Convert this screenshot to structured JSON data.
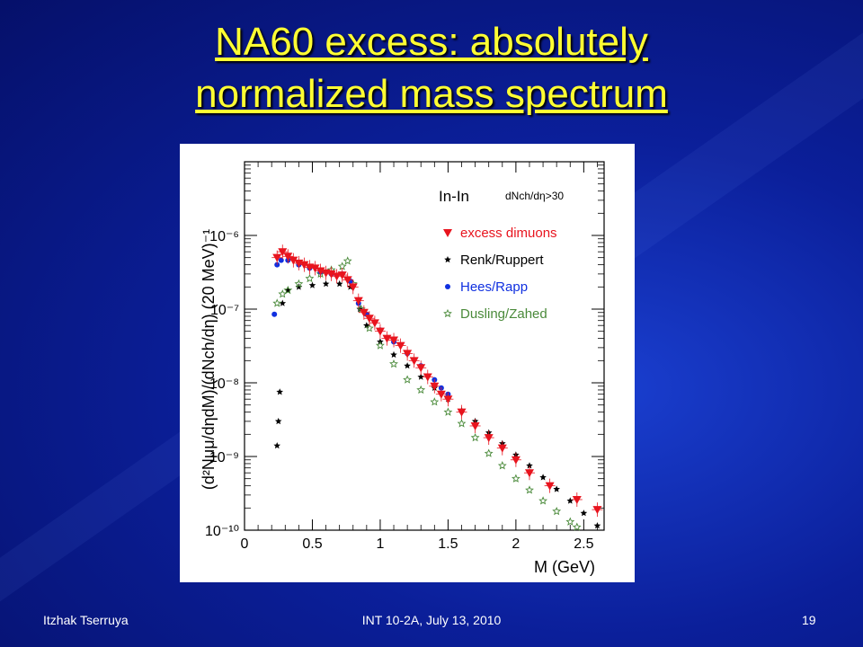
{
  "slide": {
    "title_line1": "NA60 excess: absolutely",
    "title_line2": "normalized  mass spectrum",
    "footer_left": "Itzhak Tserruya",
    "footer_center": "INT 10-2A, July 13, 2010",
    "footer_right": "19"
  },
  "colors": {
    "background": "#0b1f9a",
    "title": "#ffff33",
    "excess": "#e8141e",
    "renk": "#000000",
    "hees": "#1030e0",
    "dusling": "#4a8a3a"
  },
  "chart_data": {
    "type": "scatter",
    "xlabel": "M (GeV)",
    "ylabel": "(d²Nμμ/dηdM)/(dNch/dη) (20 MeV)⁻¹",
    "xlim": [
      0,
      2.65
    ],
    "ylim": [
      1e-10,
      1e-05
    ],
    "ylog": true,
    "x_ticks": [
      "0",
      "0.5",
      "1",
      "1.5",
      "2",
      "2.5"
    ],
    "y_ticks": [
      "10⁻¹⁰",
      "10⁻⁹",
      "10⁻⁸",
      "10⁻⁷",
      "10⁻⁶"
    ],
    "system_label": "In-In",
    "cut_label": "dNch/dη>30",
    "legend_position": "top-right",
    "series": [
      {
        "name": "excess dimuons",
        "marker": "triangle-down",
        "points": [
          [
            0.24,
            5e-07
          ],
          [
            0.28,
            6e-07
          ],
          [
            0.32,
            5.2e-07
          ],
          [
            0.36,
            4.6e-07
          ],
          [
            0.4,
            4.2e-07
          ],
          [
            0.44,
            4e-07
          ],
          [
            0.48,
            3.7e-07
          ],
          [
            0.52,
            3.6e-07
          ],
          [
            0.56,
            3.3e-07
          ],
          [
            0.6,
            3.1e-07
          ],
          [
            0.64,
            3e-07
          ],
          [
            0.68,
            2.8e-07
          ],
          [
            0.72,
            2.9e-07
          ],
          [
            0.76,
            2.5e-07
          ],
          [
            0.8,
            2e-07
          ],
          [
            0.84,
            1.3e-07
          ],
          [
            0.88,
            9e-08
          ],
          [
            0.92,
            7.5e-08
          ],
          [
            0.96,
            6.5e-08
          ],
          [
            1.0,
            5e-08
          ],
          [
            1.05,
            4e-08
          ],
          [
            1.1,
            3.8e-08
          ],
          [
            1.15,
            3.2e-08
          ],
          [
            1.2,
            2.5e-08
          ],
          [
            1.25,
            2e-08
          ],
          [
            1.3,
            1.6e-08
          ],
          [
            1.35,
            1.2e-08
          ],
          [
            1.4,
            9e-09
          ],
          [
            1.45,
            7e-09
          ],
          [
            1.5,
            6e-09
          ],
          [
            1.6,
            4e-09
          ],
          [
            1.7,
            2.6e-09
          ],
          [
            1.8,
            1.8e-09
          ],
          [
            1.9,
            1.3e-09
          ],
          [
            2.0,
            9e-10
          ],
          [
            2.1,
            6e-10
          ],
          [
            2.25,
            4e-10
          ],
          [
            2.45,
            2.6e-10
          ],
          [
            2.6,
            1.9e-10
          ]
        ]
      },
      {
        "name": "Renk/Ruppert",
        "marker": "star",
        "points": [
          [
            0.24,
            1.4e-09
          ],
          [
            0.25,
            3e-09
          ],
          [
            0.26,
            7.5e-09
          ],
          [
            0.28,
            1.2e-07
          ],
          [
            0.32,
            1.8e-07
          ],
          [
            0.4,
            2e-07
          ],
          [
            0.5,
            2.1e-07
          ],
          [
            0.6,
            2.2e-07
          ],
          [
            0.7,
            2.2e-07
          ],
          [
            0.78,
            2e-07
          ],
          [
            0.85,
            1e-07
          ],
          [
            0.9,
            6e-08
          ],
          [
            1.0,
            3.6e-08
          ],
          [
            1.1,
            2.4e-08
          ],
          [
            1.2,
            1.7e-08
          ],
          [
            1.3,
            1.2e-08
          ],
          [
            1.4,
            8.5e-09
          ],
          [
            1.5,
            6e-09
          ],
          [
            1.6,
            4.2e-09
          ],
          [
            1.7,
            3e-09
          ],
          [
            1.8,
            2.1e-09
          ],
          [
            1.9,
            1.5e-09
          ],
          [
            2.0,
            1.05e-09
          ],
          [
            2.1,
            7.5e-10
          ],
          [
            2.2,
            5.2e-10
          ],
          [
            2.3,
            3.6e-10
          ],
          [
            2.4,
            2.5e-10
          ],
          [
            2.5,
            1.7e-10
          ],
          [
            2.6,
            1.15e-10
          ]
        ]
      },
      {
        "name": "Hees/Rapp",
        "marker": "circle",
        "points": [
          [
            0.22,
            8.5e-08
          ],
          [
            0.24,
            4e-07
          ],
          [
            0.27,
            4.6e-07
          ],
          [
            0.32,
            4.6e-07
          ],
          [
            0.4,
            4e-07
          ],
          [
            0.48,
            3.6e-07
          ],
          [
            0.56,
            3.2e-07
          ],
          [
            0.64,
            3e-07
          ],
          [
            0.72,
            3e-07
          ],
          [
            0.78,
            2.4e-07
          ],
          [
            0.84,
            1.2e-07
          ],
          [
            0.9,
            8.5e-08
          ],
          [
            1.0,
            5.2e-08
          ],
          [
            1.1,
            3.6e-08
          ],
          [
            1.2,
            2.5e-08
          ],
          [
            1.3,
            1.7e-08
          ],
          [
            1.4,
            1.1e-08
          ],
          [
            1.45,
            8.5e-09
          ],
          [
            1.5,
            7e-09
          ]
        ]
      },
      {
        "name": "Dusling/Zahed",
        "marker": "star-open",
        "points": [
          [
            0.24,
            1.2e-07
          ],
          [
            0.28,
            1.6e-07
          ],
          [
            0.32,
            1.8e-07
          ],
          [
            0.4,
            2.2e-07
          ],
          [
            0.48,
            2.6e-07
          ],
          [
            0.56,
            3e-07
          ],
          [
            0.64,
            3.4e-07
          ],
          [
            0.72,
            3.8e-07
          ],
          [
            0.76,
            4.5e-07
          ],
          [
            0.8,
            2.2e-07
          ],
          [
            0.86,
            1e-07
          ],
          [
            0.92,
            5.5e-08
          ],
          [
            1.0,
            3.2e-08
          ],
          [
            1.1,
            1.8e-08
          ],
          [
            1.2,
            1.1e-08
          ],
          [
            1.3,
            8e-09
          ],
          [
            1.4,
            5.5e-09
          ],
          [
            1.5,
            4e-09
          ],
          [
            1.6,
            2.8e-09
          ],
          [
            1.7,
            1.8e-09
          ],
          [
            1.8,
            1.1e-09
          ],
          [
            1.9,
            7.5e-10
          ],
          [
            2.0,
            5e-10
          ],
          [
            2.1,
            3.5e-10
          ],
          [
            2.2,
            2.5e-10
          ],
          [
            2.3,
            1.8e-10
          ],
          [
            2.4,
            1.3e-10
          ],
          [
            2.45,
            1.1e-10
          ]
        ]
      }
    ]
  }
}
